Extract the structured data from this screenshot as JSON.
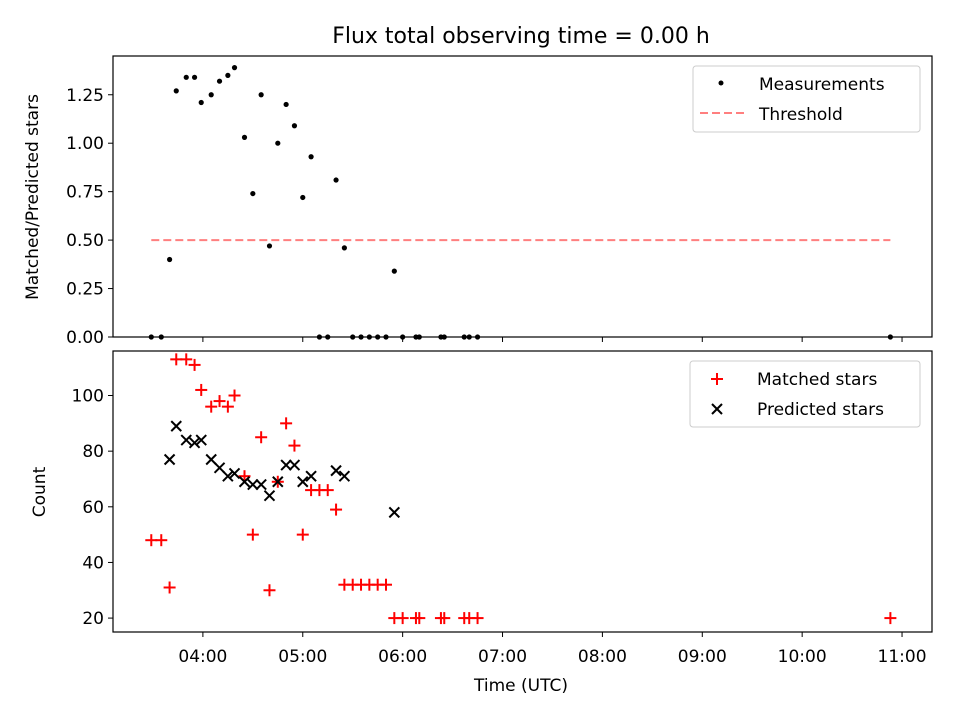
{
  "chart_data": [
    {
      "type": "scatter",
      "title": "Flux total observing time = 0.00 h",
      "xlabel": "",
      "ylabel": "Matched/Predicted stars",
      "ylim": [
        0,
        1.45
      ],
      "xlim": [
        "03:06",
        "11:18"
      ],
      "ytick_labels": [
        "0.00",
        "0.25",
        "0.50",
        "0.75",
        "1.00",
        "1.25"
      ],
      "legend": {
        "placement": "top-right",
        "entries": [
          "Measurements",
          "Threshold"
        ]
      },
      "series": [
        {
          "name": "Measurements",
          "marker": "dot",
          "color": "#000000",
          "points": [
            [
              "03:29",
              0
            ],
            [
              "03:35",
              0
            ],
            [
              "03:40",
              0.4
            ],
            [
              "03:44",
              1.27
            ],
            [
              "03:50",
              1.34
            ],
            [
              "03:55",
              1.34
            ],
            [
              "03:59",
              1.21
            ],
            [
              "04:05",
              1.25
            ],
            [
              "04:10",
              1.32
            ],
            [
              "04:15",
              1.35
            ],
            [
              "04:19",
              1.39
            ],
            [
              "04:25",
              1.03
            ],
            [
              "04:30",
              0.74
            ],
            [
              "04:35",
              1.25
            ],
            [
              "04:40",
              0.47
            ],
            [
              "04:45",
              1.0
            ],
            [
              "04:50",
              1.2
            ],
            [
              "04:55",
              1.09
            ],
            [
              "05:00",
              0.72
            ],
            [
              "05:05",
              0.93
            ],
            [
              "05:10",
              0
            ],
            [
              "05:15",
              0
            ],
            [
              "05:20",
              0.81
            ],
            [
              "05:25",
              0.46
            ],
            [
              "05:30",
              0
            ],
            [
              "05:35",
              0
            ],
            [
              "05:40",
              0
            ],
            [
              "05:45",
              0
            ],
            [
              "05:50",
              0
            ],
            [
              "05:55",
              0.34
            ],
            [
              "06:00",
              0
            ],
            [
              "06:08",
              0
            ],
            [
              "06:10",
              0
            ],
            [
              "06:23",
              0
            ],
            [
              "06:25",
              0
            ],
            [
              "06:37",
              0
            ],
            [
              "06:40",
              0
            ],
            [
              "06:45",
              0
            ],
            [
              "10:53",
              0
            ]
          ]
        },
        {
          "name": "Threshold",
          "style": "dashed",
          "color": "#ff7f7f",
          "points": [
            [
              "03:29",
              0.5
            ],
            [
              "10:53",
              0.5
            ]
          ]
        }
      ]
    },
    {
      "type": "scatter",
      "title": "",
      "xlabel": "Time (UTC)",
      "ylabel": "Count",
      "ylim": [
        15,
        116
      ],
      "xlim": [
        "03:06",
        "11:18"
      ],
      "ytick_labels": [
        "20",
        "40",
        "60",
        "80",
        "100"
      ],
      "xtick_labels": [
        "04:00",
        "05:00",
        "06:00",
        "07:00",
        "08:00",
        "09:00",
        "10:00",
        "11:00"
      ],
      "legend": {
        "placement": "top-right",
        "entries": [
          "Matched stars",
          "Predicted stars"
        ]
      },
      "series": [
        {
          "name": "Matched stars",
          "marker": "plus",
          "color": "#ff0000",
          "points": [
            [
              "03:29",
              48
            ],
            [
              "03:35",
              48
            ],
            [
              "03:40",
              31
            ],
            [
              "03:44",
              113
            ],
            [
              "03:50",
              113
            ],
            [
              "03:55",
              111
            ],
            [
              "03:59",
              102
            ],
            [
              "04:05",
              96
            ],
            [
              "04:10",
              98
            ],
            [
              "04:15",
              96
            ],
            [
              "04:19",
              100
            ],
            [
              "04:25",
              71
            ],
            [
              "04:30",
              50
            ],
            [
              "04:35",
              85
            ],
            [
              "04:40",
              30
            ],
            [
              "04:45",
              69
            ],
            [
              "04:50",
              90
            ],
            [
              "04:55",
              82
            ],
            [
              "05:00",
              50
            ],
            [
              "05:05",
              66
            ],
            [
              "05:10",
              66
            ],
            [
              "05:15",
              66
            ],
            [
              "05:20",
              59
            ],
            [
              "05:25",
              32
            ],
            [
              "05:30",
              32
            ],
            [
              "05:35",
              32
            ],
            [
              "05:40",
              32
            ],
            [
              "05:45",
              32
            ],
            [
              "05:50",
              32
            ],
            [
              "05:55",
              20
            ],
            [
              "06:00",
              20
            ],
            [
              "06:08",
              20
            ],
            [
              "06:10",
              20
            ],
            [
              "06:23",
              20
            ],
            [
              "06:25",
              20
            ],
            [
              "06:37",
              20
            ],
            [
              "06:40",
              20
            ],
            [
              "06:45",
              20
            ],
            [
              "10:53",
              20
            ]
          ]
        },
        {
          "name": "Predicted stars",
          "marker": "x",
          "color": "#000000",
          "points": [
            [
              "03:40",
              77
            ],
            [
              "03:44",
              89
            ],
            [
              "03:50",
              84
            ],
            [
              "03:55",
              83
            ],
            [
              "03:59",
              84
            ],
            [
              "04:05",
              77
            ],
            [
              "04:10",
              74
            ],
            [
              "04:15",
              71
            ],
            [
              "04:19",
              72
            ],
            [
              "04:25",
              69
            ],
            [
              "04:30",
              68
            ],
            [
              "04:35",
              68
            ],
            [
              "04:40",
              64
            ],
            [
              "04:45",
              69
            ],
            [
              "04:50",
              75
            ],
            [
              "04:55",
              75
            ],
            [
              "05:00",
              69
            ],
            [
              "05:05",
              71
            ],
            [
              "05:20",
              73
            ],
            [
              "05:25",
              71
            ],
            [
              "05:55",
              58
            ]
          ]
        }
      ]
    }
  ]
}
